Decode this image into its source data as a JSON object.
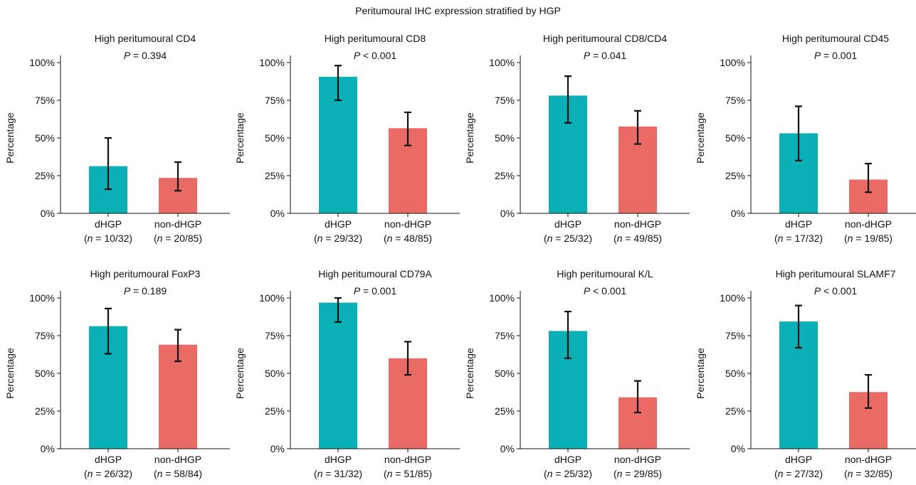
{
  "figure_title": "Peritumoural IHC expression stratified by HGP",
  "chart_data": [
    {
      "type": "bar",
      "title": "High peritumoural CD4",
      "pvalue": "= 0.394",
      "ylabel": "Percentage",
      "ylim": [
        0,
        100
      ],
      "yticks": [
        "0%",
        "25%",
        "50%",
        "75%",
        "100%"
      ],
      "categories": [
        "dHGP",
        "non-dHGP"
      ],
      "n_labels": [
        "= 10/32",
        "= 20/85"
      ],
      "values": [
        31.3,
        23.5
      ],
      "error_low": [
        16,
        15
      ],
      "error_high": [
        50,
        34
      ],
      "colors": [
        "#0BAFB6",
        "#EA6B66"
      ]
    },
    {
      "type": "bar",
      "title": "High peritumoural CD8",
      "pvalue": "< 0.001",
      "ylabel": "Percentage",
      "ylim": [
        0,
        100
      ],
      "yticks": [
        "0%",
        "25%",
        "50%",
        "75%",
        "100%"
      ],
      "categories": [
        "dHGP",
        "non-dHGP"
      ],
      "n_labels": [
        "= 29/32",
        "= 48/85"
      ],
      "values": [
        90.6,
        56.5
      ],
      "error_low": [
        75,
        45
      ],
      "error_high": [
        98,
        67
      ],
      "colors": [
        "#0BAFB6",
        "#EA6B66"
      ]
    },
    {
      "type": "bar",
      "title": "High peritumoural CD8/CD4",
      "pvalue": "= 0.041",
      "ylabel": "Percentage",
      "ylim": [
        0,
        100
      ],
      "yticks": [
        "0%",
        "25%",
        "50%",
        "75%",
        "100%"
      ],
      "categories": [
        "dHGP",
        "non-dHGP"
      ],
      "n_labels": [
        "= 25/32",
        "= 49/85"
      ],
      "values": [
        78.1,
        57.6
      ],
      "error_low": [
        60,
        46
      ],
      "error_high": [
        91,
        68
      ],
      "colors": [
        "#0BAFB6",
        "#EA6B66"
      ]
    },
    {
      "type": "bar",
      "title": "High peritumoural CD45",
      "pvalue": "= 0.001",
      "ylabel": "Percentage",
      "ylim": [
        0,
        100
      ],
      "yticks": [
        "0%",
        "25%",
        "50%",
        "75%",
        "100%"
      ],
      "categories": [
        "dHGP",
        "non-dHGP"
      ],
      "n_labels": [
        "= 17/32",
        "= 19/85"
      ],
      "values": [
        53.1,
        22.4
      ],
      "error_low": [
        35,
        14
      ],
      "error_high": [
        71,
        33
      ],
      "colors": [
        "#0BAFB6",
        "#EA6B66"
      ]
    },
    {
      "type": "bar",
      "title": "High peritumoural FoxP3",
      "pvalue": "= 0.189",
      "ylabel": "Percentage",
      "ylim": [
        0,
        100
      ],
      "yticks": [
        "0%",
        "25%",
        "50%",
        "75%",
        "100%"
      ],
      "categories": [
        "dHGP",
        "non-dHGP"
      ],
      "n_labels": [
        "= 26/32",
        "= 58/84"
      ],
      "values": [
        81.3,
        69.0
      ],
      "error_low": [
        63,
        58
      ],
      "error_high": [
        93,
        79
      ],
      "colors": [
        "#0BAFB6",
        "#EA6B66"
      ]
    },
    {
      "type": "bar",
      "title": "High peritumoural CD79A",
      "pvalue": "= 0.001",
      "ylabel": "Percentage",
      "ylim": [
        0,
        100
      ],
      "yticks": [
        "0%",
        "25%",
        "50%",
        "75%",
        "100%"
      ],
      "categories": [
        "dHGP",
        "non-dHGP"
      ],
      "n_labels": [
        "= 31/32",
        "= 51/85"
      ],
      "values": [
        96.9,
        60.0
      ],
      "error_low": [
        84,
        49
      ],
      "error_high": [
        100,
        71
      ],
      "colors": [
        "#0BAFB6",
        "#EA6B66"
      ]
    },
    {
      "type": "bar",
      "title": "High peritumoural K/L",
      "pvalue": "< 0.001",
      "ylabel": "Percentage",
      "ylim": [
        0,
        100
      ],
      "yticks": [
        "0%",
        "25%",
        "50%",
        "75%",
        "100%"
      ],
      "categories": [
        "dHGP",
        "non-dHGP"
      ],
      "n_labels": [
        "= 25/32",
        "= 29/85"
      ],
      "values": [
        78.1,
        34.1
      ],
      "error_low": [
        60,
        24
      ],
      "error_high": [
        91,
        45
      ],
      "colors": [
        "#0BAFB6",
        "#EA6B66"
      ]
    },
    {
      "type": "bar",
      "title": "High peritumoural SLAMF7",
      "pvalue": "< 0.001",
      "ylabel": "Percentage",
      "ylim": [
        0,
        100
      ],
      "yticks": [
        "0%",
        "25%",
        "50%",
        "75%",
        "100%"
      ],
      "categories": [
        "dHGP",
        "non-dHGP"
      ],
      "n_labels": [
        "= 27/32",
        "= 32/85"
      ],
      "values": [
        84.4,
        37.6
      ],
      "error_low": [
        67,
        27
      ],
      "error_high": [
        95,
        49
      ],
      "colors": [
        "#0BAFB6",
        "#EA6B66"
      ]
    }
  ]
}
